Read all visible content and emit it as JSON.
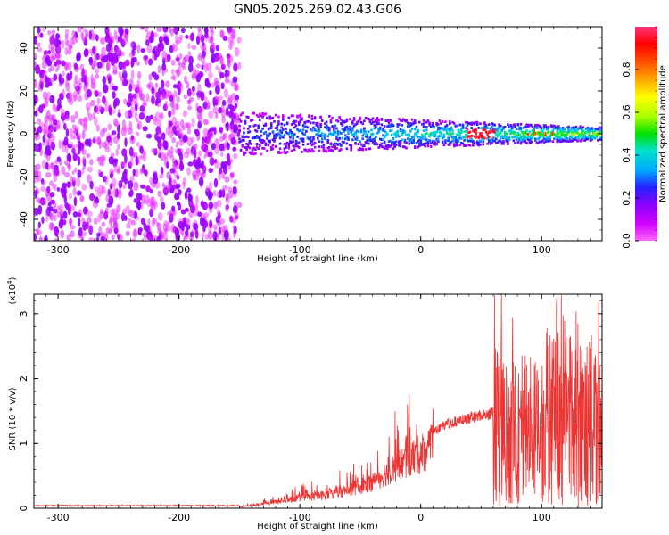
{
  "page_title": "GN05.2025.269.02.43.G06",
  "colors": {
    "snr_line": "#ee3333",
    "frame": "#000000"
  },
  "colorbar": {
    "label": "Normalized spectral amplitude",
    "range": [
      0.0,
      1.0
    ],
    "ticks": [
      0.0,
      0.2,
      0.4,
      0.6,
      0.8
    ],
    "tick_labels": [
      "0.0",
      "0.2",
      "0.4",
      "0.6",
      "0.8"
    ],
    "colors": [
      "#ff66ff",
      "#d000ff",
      "#8a00ff",
      "#2222ff",
      "#00aaff",
      "#00e0cc",
      "#00e000",
      "#aaff00",
      "#ffff00",
      "#ffaa00",
      "#ff5500",
      "#ff0000",
      "#ff3377"
    ]
  },
  "chart_data": [
    {
      "type": "heatmap",
      "name": "spectrogram",
      "xlabel": "Height of straight line (km)",
      "ylabel": "Frequency (Hz)",
      "xlim": [
        -320,
        150
      ],
      "ylim": [
        -50,
        50
      ],
      "x_ticks": [
        -300,
        -200,
        -100,
        0,
        100
      ],
      "x_tick_labels": [
        "-300",
        "-200",
        "-100",
        "0",
        "100"
      ],
      "y_ticks": [
        -40,
        -20,
        0,
        20,
        40
      ],
      "y_tick_labels": [
        "-40",
        "-20",
        "0",
        "20",
        "40"
      ],
      "regions": [
        {
          "description": "noise",
          "x_range": [
            -320,
            -150
          ],
          "f_range": [
            -50,
            50
          ],
          "amplitude": 0.1
        },
        {
          "description": "signal band",
          "x_range": [
            -150,
            150
          ],
          "f_center": 0,
          "f_halfwidth_start": 10,
          "f_halfwidth_end": 3,
          "amplitude_peak": 1.0,
          "peak_x": 50
        }
      ]
    },
    {
      "type": "line",
      "name": "snr",
      "xlabel": "Height of straight line (km)",
      "ylabel": "SNR (10 * v/v)",
      "y_scale_label": "(x10",
      "y_scale_exp": "4",
      "y_scale_close": ")",
      "xlim": [
        -320,
        150
      ],
      "ylim": [
        0,
        3.3
      ],
      "x_ticks": [
        -300,
        -200,
        -100,
        0,
        100
      ],
      "x_tick_labels": [
        "-300",
        "-200",
        "-100",
        "0",
        "100"
      ],
      "y_ticks": [
        0,
        1,
        2,
        3
      ],
      "y_tick_labels": [
        "0",
        "1",
        "2",
        "3"
      ],
      "series": [
        {
          "name": "SNR",
          "x": [
            -320,
            -150,
            -140,
            -120,
            -100,
            -80,
            -60,
            -40,
            -20,
            0,
            20,
            40,
            55,
            60,
            65,
            70,
            80,
            90,
            100,
            110,
            120,
            130,
            140,
            150
          ],
          "y": [
            0.03,
            0.03,
            0.05,
            0.12,
            0.2,
            0.25,
            0.35,
            0.5,
            0.8,
            1.05,
            1.35,
            1.45,
            1.5,
            1.55,
            1.6,
            1.4,
            1.5,
            1.6,
            1.7,
            1.8,
            1.9,
            1.8,
            1.7,
            1.5
          ],
          "max": 3.3
        }
      ]
    }
  ]
}
